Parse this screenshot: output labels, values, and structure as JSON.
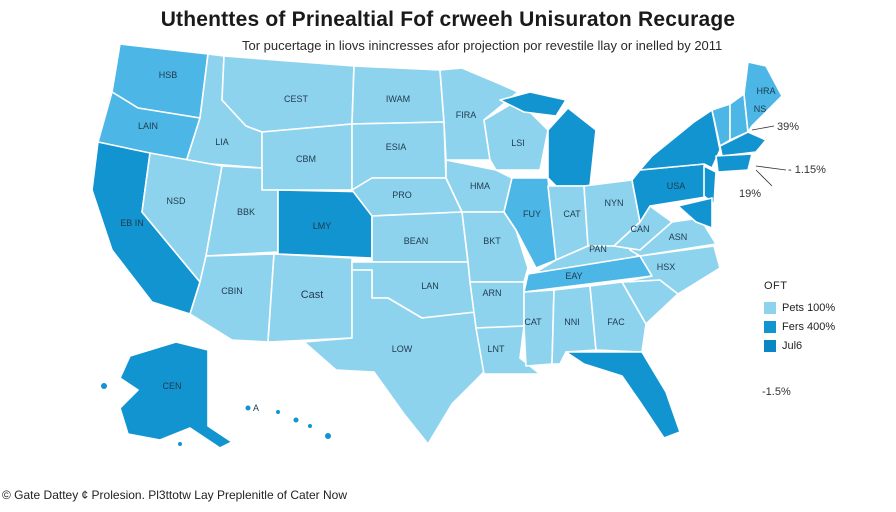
{
  "title": "Uthenttes of Prinealtial Fof crweeh Unisuraton Recurage",
  "subtitle": "Tor pucertage in liovs inincresses afor projection por revestile llay or inelled by 2011",
  "colors": {
    "light": "#8ed3ee",
    "medium": "#4cb6e6",
    "dark": "#1294d0",
    "darkest": "#0a86c4"
  },
  "states": {
    "wa": "HSB",
    "or": "LAIN",
    "id": "LIA",
    "mt": "CEST",
    "nd": "IWAM",
    "mn": "FIRA",
    "wy": "CBM",
    "sd": "ESIA",
    "wi": "LSI",
    "nv": "NSD",
    "ut": "BBK",
    "co": "LMY",
    "ne": "PRO",
    "ia": "HMA",
    "il": "FUY",
    "in": "CAT",
    "oh": "NYN",
    "ks": "BEAN",
    "mo": "BKT",
    "ca_s": "EB IN",
    "az": "CBIN",
    "nm": "Cast",
    "ok": "LAN",
    "ar": "ARN",
    "tx": "LOW",
    "la": "LNT",
    "ms": "CAT",
    "al": "NNI",
    "ga": "FAC",
    "tn": "EAY",
    "ky": "PAN",
    "wv": "CAN",
    "va": "ASN",
    "nc": "HSX",
    "pa": "USA",
    "me": "HRA",
    "ny": "NS",
    "ak": "CEN",
    "hi": "A"
  },
  "side_values": {
    "v1": "39%",
    "v2": "- 1.15%",
    "v3": "19%",
    "v4": "-1.5%"
  },
  "legend": {
    "title": "OFT",
    "items": [
      {
        "label": "Pets 100%",
        "color": "#8ed3ee"
      },
      {
        "label": "Fers 400%",
        "color": "#1294d0"
      },
      {
        "label": "Jul6",
        "color": "#0a86c4"
      }
    ]
  },
  "footer": "© Gate Dattey ¢ Prolesion. Pl3ttotw Lay Preplenitle of Cater Now"
}
